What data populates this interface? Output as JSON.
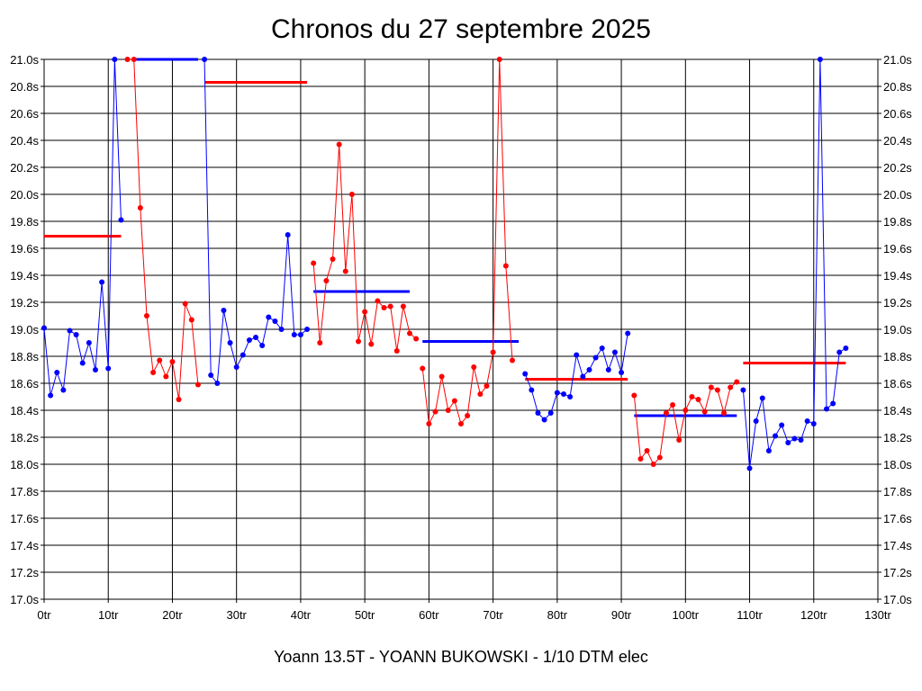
{
  "page": {
    "title": "Chronos du 27 septembre 2025",
    "footer": "Yoann 13.5T - YOANN BUKOWSKI - 1/10 DTM elec"
  },
  "chart_data": {
    "type": "line",
    "title": "Chronos du 27 septembre 2025",
    "xlabel": "",
    "ylabel": "",
    "xlim": [
      0,
      130
    ],
    "ylim": [
      17.0,
      21.0
    ],
    "x_ticks": [
      0,
      10,
      20,
      30,
      40,
      50,
      60,
      70,
      80,
      90,
      100,
      110,
      120,
      130
    ],
    "x_tick_labels": [
      "0tr",
      "10tr",
      "20tr",
      "30tr",
      "40tr",
      "50tr",
      "60tr",
      "70tr",
      "80tr",
      "90tr",
      "100tr",
      "110tr",
      "120tr",
      "130tr"
    ],
    "y_ticks": [
      17.0,
      17.2,
      17.4,
      17.6,
      17.8,
      18.0,
      18.2,
      18.4,
      18.6,
      18.8,
      19.0,
      19.2,
      19.4,
      19.6,
      19.8,
      20.0,
      20.2,
      20.4,
      20.6,
      20.8,
      21.0
    ],
    "y_tick_labels": [
      "17.0s",
      "17.2s",
      "17.4s",
      "17.6s",
      "17.8s",
      "18.0s",
      "18.2s",
      "18.4s",
      "18.6s",
      "18.8s",
      "19.0s",
      "19.2s",
      "19.4s",
      "19.6s",
      "19.8s",
      "20.0s",
      "20.2s",
      "20.4s",
      "20.6s",
      "20.8s",
      "21.0s"
    ],
    "y_ticks_both_sides": true,
    "grid": true,
    "colors": {
      "blue": "#0000ff",
      "red": "#ff0000"
    },
    "series": [
      {
        "color": "blue",
        "x": [
          0,
          1,
          2,
          3,
          4,
          5,
          6,
          7,
          8,
          9,
          10,
          11,
          12
        ],
        "y": [
          19.01,
          18.51,
          18.68,
          18.55,
          18.99,
          18.96,
          18.75,
          18.9,
          18.7,
          19.35,
          18.71,
          21.0,
          19.81
        ]
      },
      {
        "color": "red",
        "x": [
          13,
          14,
          15,
          16,
          17,
          18,
          19,
          20,
          21,
          22,
          23,
          24
        ],
        "y": [
          21.0,
          21.0,
          19.9,
          19.1,
          18.68,
          18.77,
          18.65,
          18.76,
          18.48,
          19.19,
          19.07,
          18.59
        ]
      },
      {
        "color": "blue",
        "x": [
          25,
          26,
          27,
          28,
          29,
          30,
          31,
          32,
          33,
          34,
          35,
          36,
          37,
          38,
          39,
          40,
          41
        ],
        "y": [
          21.0,
          18.66,
          18.6,
          19.14,
          18.9,
          18.72,
          18.81,
          18.92,
          18.94,
          18.88,
          19.09,
          19.06,
          19.0,
          19.7,
          18.96,
          18.96,
          19.0
        ]
      },
      {
        "color": "red",
        "x": [
          42,
          43,
          44,
          45,
          46,
          47,
          48,
          49,
          50,
          51,
          52,
          53,
          54,
          55,
          56,
          57,
          58
        ],
        "y": [
          19.49,
          18.9,
          19.36,
          19.52,
          20.37,
          19.43,
          20.0,
          18.91,
          19.13,
          18.89,
          19.21,
          19.16,
          19.17,
          18.84,
          19.17,
          18.97,
          18.93
        ]
      },
      {
        "color": "red",
        "x": [
          59,
          60,
          61,
          62,
          63,
          64,
          65,
          66,
          67,
          68,
          69,
          70,
          71,
          72,
          73
        ],
        "y": [
          18.71,
          18.3,
          18.39,
          18.65,
          18.4,
          18.47,
          18.3,
          18.36,
          18.72,
          18.52,
          18.58,
          18.83,
          21.0,
          19.47,
          18.77
        ]
      },
      {
        "color": "blue",
        "x": [
          75,
          76,
          77,
          78,
          79,
          80,
          81,
          82,
          83,
          84,
          85,
          86,
          87,
          88,
          89,
          90,
          91
        ],
        "y": [
          18.67,
          18.55,
          18.38,
          18.33,
          18.38,
          18.53,
          18.52,
          18.5,
          18.81,
          18.65,
          18.7,
          18.79,
          18.86,
          18.7,
          18.83,
          18.68,
          18.97
        ]
      },
      {
        "color": "red",
        "x": [
          92,
          93,
          94,
          95,
          96,
          97,
          98,
          99,
          100,
          101,
          102,
          103,
          104,
          105,
          106,
          107,
          108
        ],
        "y": [
          18.51,
          18.04,
          18.1,
          18.0,
          18.05,
          18.38,
          18.44,
          18.18,
          18.4,
          18.5,
          18.48,
          18.39,
          18.57,
          18.55,
          18.38,
          18.57,
          18.61
        ]
      },
      {
        "color": "blue",
        "x": [
          109,
          110,
          111,
          112,
          113,
          114,
          115,
          116,
          117,
          118,
          119,
          120,
          121,
          122,
          123,
          124,
          125
        ],
        "y": [
          18.55,
          17.97,
          18.32,
          18.49,
          18.1,
          18.21,
          18.29,
          18.16,
          18.19,
          18.18,
          18.32,
          18.3,
          21.0,
          18.41,
          18.45,
          18.83,
          18.86
        ]
      }
    ],
    "averages": [
      {
        "color": "red",
        "x_start": 0,
        "x_end": 12,
        "y": 19.69
      },
      {
        "color": "blue",
        "x_start": 14,
        "x_end": 24,
        "y": 21.0
      },
      {
        "color": "red",
        "x_start": 25,
        "x_end": 41,
        "y": 20.83
      },
      {
        "color": "blue",
        "x_start": 42,
        "x_end": 57,
        "y": 19.28
      },
      {
        "color": "blue",
        "x_start": 59,
        "x_end": 74,
        "y": 18.91
      },
      {
        "color": "red",
        "x_start": 75,
        "x_end": 91,
        "y": 18.63
      },
      {
        "color": "blue",
        "x_start": 92,
        "x_end": 108,
        "y": 18.36
      },
      {
        "color": "red",
        "x_start": 109,
        "x_end": 125,
        "y": 18.75
      }
    ]
  }
}
